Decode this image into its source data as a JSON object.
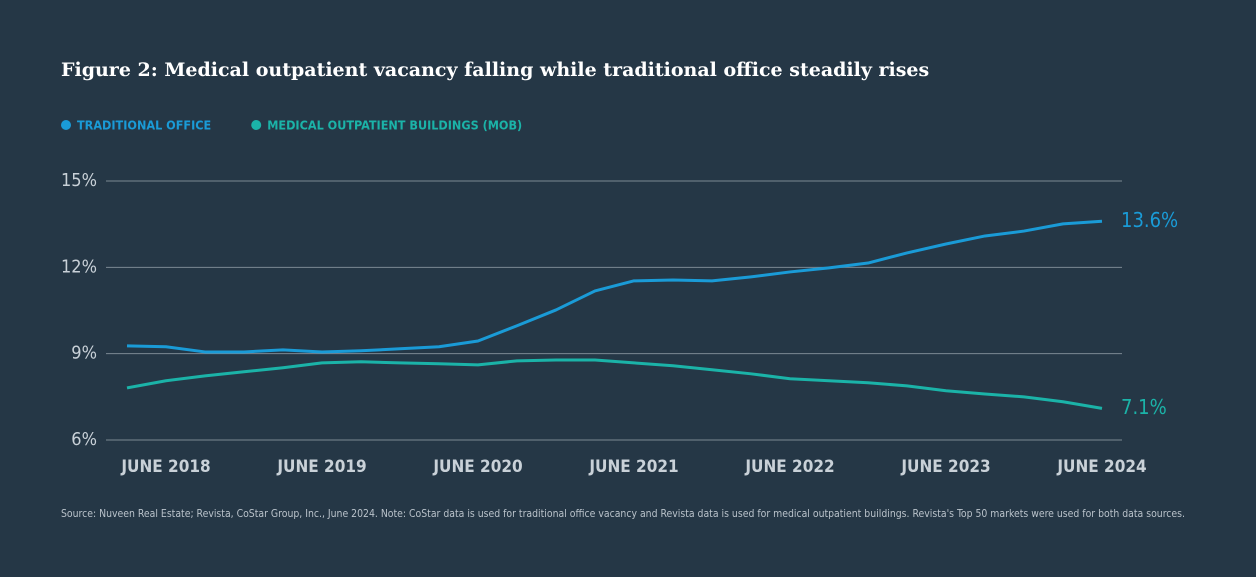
{
  "chart_data": {
    "type": "line",
    "title": "Figure 2: Medical outpatient vacancy falling while traditional office steadily rises",
    "categories": [
      null,
      "JUNE 2018",
      null,
      null,
      null,
      "JUNE 2019",
      null,
      null,
      null,
      "JUNE 2020",
      null,
      null,
      null,
      "JUNE 2021",
      null,
      null,
      null,
      "JUNE 2022",
      null,
      null,
      null,
      "JUNE 2023",
      null,
      null,
      null,
      "JUNE 2024"
    ],
    "series": [
      {
        "name": "TRADITIONAL OFFICE",
        "color": "#1a9bd7",
        "values": [
          9.27,
          9.24,
          9.06,
          9.06,
          9.13,
          9.06,
          9.1,
          9.17,
          9.24,
          9.44,
          9.97,
          10.52,
          11.18,
          11.53,
          11.56,
          11.53,
          11.67,
          11.84,
          11.98,
          12.15,
          12.5,
          12.81,
          13.09,
          13.26,
          13.51,
          13.6
        ],
        "value_labels": [
          null,
          null,
          null,
          null,
          null,
          null,
          null,
          null,
          null,
          null,
          null,
          null,
          null,
          null,
          null,
          null,
          null,
          null,
          null,
          null,
          null,
          null,
          null,
          null,
          null,
          "13.6%"
        ]
      },
      {
        "name": "MEDICAL OUTPATIENT BUILDINGS (MOB)",
        "color": "#1bb3a8",
        "values": [
          7.81,
          8.06,
          8.23,
          8.37,
          8.51,
          8.68,
          8.72,
          8.68,
          8.65,
          8.61,
          8.75,
          8.78,
          8.78,
          8.68,
          8.58,
          8.44,
          8.3,
          8.13,
          8.06,
          7.99,
          7.88,
          7.71,
          7.6,
          7.5,
          7.33,
          7.1
        ],
        "value_labels": [
          null,
          null,
          null,
          null,
          null,
          null,
          null,
          null,
          null,
          null,
          null,
          null,
          null,
          null,
          null,
          null,
          null,
          null,
          null,
          null,
          null,
          null,
          null,
          null,
          null,
          "7.1%"
        ]
      }
    ],
    "ylim": [
      6,
      15
    ],
    "yticks": [
      {
        "value": 6,
        "label": "6%"
      },
      {
        "value": 9,
        "label": "9%"
      },
      {
        "value": 12,
        "label": "12%"
      },
      {
        "value": 15,
        "label": "15%"
      }
    ],
    "grid": true,
    "legend": "top",
    "source": "Source: Nuveen Real Estate; Revista, CoStar Group, Inc., June 2024. Note: CoStar data is used for traditional office vacancy and Revista data is used for medical outpatient buildings. Revista's Top 50 markets were used for both data sources."
  }
}
